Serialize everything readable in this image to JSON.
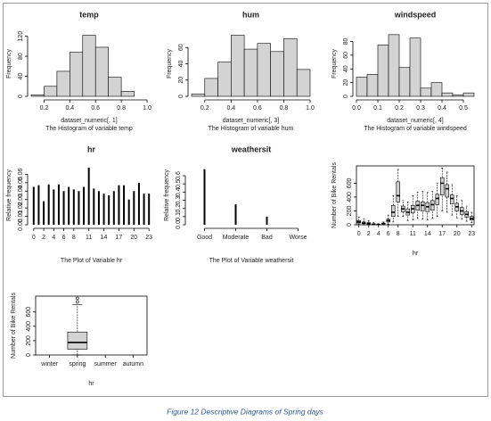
{
  "caption": "Figure 12 Descriptive Diagrams of Spring days",
  "chart_data": [
    {
      "type": "histogram",
      "title": "temp",
      "xlabel": "dataset_numeric[, 1]",
      "subtitle": "The Histogram of variable temp",
      "ylabel": "Frequency",
      "bins": [
        0.1,
        0.2,
        0.3,
        0.4,
        0.5,
        0.6,
        0.7,
        0.8,
        0.9
      ],
      "values": [
        3,
        20,
        50,
        88,
        122,
        98,
        38,
        10
      ],
      "color": "#d3d3d3",
      "xlim": [
        0.1,
        1
      ],
      "xticks": [
        0.2,
        0.4,
        0.6,
        0.8,
        {
          "value": 1,
          "label": "1.0"
        }
      ],
      "ylim": [
        0,
        130
      ],
      "yticks": [
        0,
        40,
        80,
        120
      ]
    },
    {
      "type": "histogram",
      "title": "hum",
      "xlabel": "dataset_numeric[, 3]",
      "subtitle": "The Histogram of variable hum",
      "ylabel": "Frequency",
      "bins": [
        0.1,
        0.2,
        0.3,
        0.4,
        0.5,
        0.6,
        0.7,
        0.8,
        0.9,
        1
      ],
      "values": [
        3,
        22,
        42,
        75,
        58,
        65,
        55,
        71,
        33
      ],
      "color": "#d3d3d3",
      "xlim": [
        0.1,
        1
      ],
      "xticks": [
        0.2,
        0.4,
        0.6,
        0.8,
        {
          "value": 1,
          "label": "1.0"
        }
      ],
      "ylim": [
        0,
        80
      ],
      "yticks": [
        0,
        20,
        40,
        60
      ]
    },
    {
      "type": "histogram",
      "title": "windspeed",
      "xlabel": "dataset_numeric[, 4]",
      "subtitle": "The Histogram of variable windspeed",
      "ylabel": "Frequency",
      "bins": [
        0,
        0.05,
        0.1,
        0.15,
        0.2,
        0.25,
        0.3,
        0.35,
        0.4,
        0.45,
        0.5,
        0.55
      ],
      "values": [
        28,
        32,
        75,
        90,
        42,
        85,
        12,
        20,
        5,
        2,
        5
      ],
      "color": "#d3d3d3",
      "xlim": [
        0,
        0.55
      ],
      "xticks": [
        {
          "value": 0,
          "label": "0.0"
        },
        0.1,
        0.2,
        0.3,
        0.4,
        0.5
      ],
      "ylim": [
        0,
        95
      ],
      "yticks": [
        0,
        20,
        40,
        60,
        80
      ]
    },
    {
      "type": "bar",
      "title": "hr",
      "xlabel": "The Plot of Variable hr",
      "ylabel": "Relative frequency",
      "categories": [
        "0",
        null,
        "2",
        null,
        "4",
        null,
        "6",
        null,
        "8",
        null,
        null,
        "11",
        null,
        null,
        "14",
        null,
        null,
        "17",
        null,
        null,
        "20",
        null,
        null,
        "23"
      ],
      "values": [
        0.045,
        0.047,
        0.028,
        0.048,
        0.042,
        0.048,
        0.04,
        0.045,
        0.042,
        0.04,
        0.045,
        0.068,
        0.043,
        0.04,
        0.037,
        0.035,
        0.04,
        0.047,
        0.047,
        0.03,
        0.04,
        0.05,
        0.037,
        0.037
      ],
      "color": "#000000",
      "ylim": [
        0,
        0.07
      ],
      "yticks": [
        {
          "value": 0,
          "label": "0.00"
        },
        {
          "value": 0.01,
          "label": "0.01"
        },
        {
          "value": 0.02,
          "label": "0.02"
        },
        {
          "value": 0.03,
          "label": "0.03"
        },
        {
          "value": 0.04,
          "label": "0.04"
        },
        {
          "value": 0.05,
          "label": "0.05"
        },
        {
          "value": 0.06,
          "label": "0.06"
        }
      ]
    },
    {
      "type": "bar",
      "title": "weathersit",
      "xlabel": "The Plot of Variable weathersit",
      "ylabel": "Relative frequency",
      "categories": [
        "Good",
        "Moderate",
        "Bad",
        "Worse"
      ],
      "values": [
        0.68,
        0.25,
        0.1,
        0
      ],
      "color": "#000000",
      "ylim": [
        0,
        0.72
      ],
      "yticks": [
        {
          "value": 0,
          "label": "0.0"
        },
        0.1,
        0.2,
        0.3,
        0.4,
        0.5,
        0.6
      ]
    },
    {
      "type": "boxplot",
      "xlabel": "hr",
      "ylabel": "Number of Bike Rentals",
      "color": "#d3d3d3",
      "categories": [
        "0",
        null,
        "2",
        null,
        "4",
        null,
        "6",
        null,
        "8",
        null,
        null,
        "11",
        null,
        null,
        "14",
        null,
        null,
        "17",
        null,
        null,
        "20",
        null,
        null,
        "23"
      ],
      "min": [
        5,
        3,
        2,
        1,
        1,
        2,
        10,
        40,
        120,
        120,
        60,
        70,
        90,
        80,
        70,
        90,
        120,
        200,
        180,
        140,
        100,
        80,
        50,
        30
      ],
      "q1": [
        25,
        15,
        8,
        4,
        3,
        10,
        40,
        120,
        330,
        190,
        140,
        170,
        210,
        200,
        190,
        210,
        290,
        430,
        400,
        300,
        200,
        150,
        110,
        70
      ],
      "median": [
        40,
        25,
        18,
        8,
        5,
        18,
        60,
        180,
        420,
        230,
        180,
        230,
        280,
        280,
        260,
        290,
        380,
        600,
        520,
        380,
        260,
        200,
        150,
        90
      ],
      "q3": [
        60,
        40,
        30,
        15,
        8,
        25,
        80,
        280,
        620,
        270,
        230,
        280,
        340,
        330,
        320,
        350,
        440,
        680,
        580,
        430,
        310,
        250,
        190,
        120
      ],
      "max": [
        110,
        80,
        60,
        30,
        15,
        40,
        140,
        420,
        800,
        350,
        330,
        420,
        470,
        480,
        470,
        480,
        600,
        820,
        760,
        580,
        420,
        350,
        270,
        180
      ],
      "ylim": [
        0,
        850
      ],
      "yticks": [
        0,
        200,
        400,
        600
      ]
    },
    {
      "type": "boxplot",
      "xlabel": "hr",
      "ylabel": "Number of Bike Rentals",
      "color": "#d3d3d3",
      "categories": [
        "winter",
        "spring",
        "summer",
        "autumn"
      ],
      "min": [
        null,
        0,
        null,
        null
      ],
      "q1": [
        null,
        80,
        null,
        null
      ],
      "median": [
        null,
        175,
        null,
        null
      ],
      "q3": [
        null,
        320,
        null,
        null
      ],
      "max": [
        null,
        700,
        null,
        null
      ],
      "outliers": [
        null,
        [
          740,
          790
        ],
        null,
        null
      ],
      "ylim": [
        0,
        820
      ],
      "yticks": [
        0,
        200,
        400,
        600
      ]
    }
  ]
}
